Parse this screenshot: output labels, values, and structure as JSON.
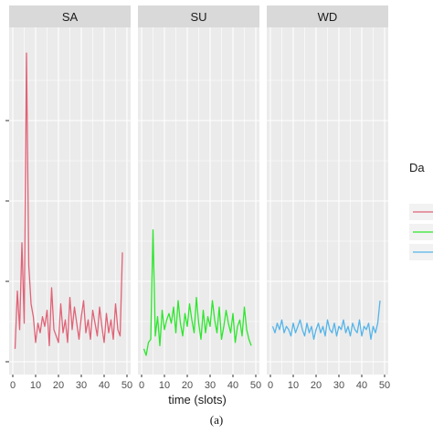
{
  "caption": "(a)",
  "chart_data": {
    "type": "line",
    "facet_by": "day",
    "xlabel": "time (slots)",
    "ylabel": "",
    "xlim": [
      0,
      50
    ],
    "x_ticks": [
      0,
      10,
      20,
      30,
      40,
      50
    ],
    "x_tick_labels": [
      "0",
      "10",
      "20",
      "30",
      "40",
      "50"
    ],
    "ylim": [
      0,
      1
    ],
    "legend": {
      "title": "Da",
      "position": "right",
      "clipped": true
    },
    "grid": true,
    "series": [
      {
        "facet": "SA",
        "color": "#E06377",
        "x": [
          1,
          2,
          3,
          4,
          5,
          6,
          7,
          8,
          9,
          10,
          11,
          12,
          13,
          14,
          15,
          16,
          17,
          18,
          19,
          20,
          21,
          22,
          23,
          24,
          25,
          26,
          27,
          28,
          29,
          30,
          31,
          32,
          33,
          34,
          35,
          36,
          37,
          38,
          39,
          40,
          41,
          42,
          43,
          44,
          45,
          46,
          47,
          48
        ],
        "y": [
          0.04,
          0.22,
          0.1,
          0.37,
          0.12,
          0.96,
          0.3,
          0.18,
          0.14,
          0.06,
          0.12,
          0.09,
          0.14,
          0.11,
          0.16,
          0.05,
          0.23,
          0.1,
          0.08,
          0.06,
          0.18,
          0.09,
          0.13,
          0.06,
          0.2,
          0.1,
          0.17,
          0.12,
          0.07,
          0.14,
          0.19,
          0.09,
          0.13,
          0.07,
          0.16,
          0.12,
          0.08,
          0.17,
          0.11,
          0.06,
          0.15,
          0.09,
          0.13,
          0.07,
          0.18,
          0.1,
          0.08,
          0.34
        ]
      },
      {
        "facet": "SU",
        "color": "#2EE62E",
        "x": [
          1,
          2,
          3,
          4,
          5,
          6,
          7,
          8,
          9,
          10,
          11,
          12,
          13,
          14,
          15,
          16,
          17,
          18,
          19,
          20,
          21,
          22,
          23,
          24,
          25,
          26,
          27,
          28,
          29,
          30,
          31,
          32,
          33,
          34,
          35,
          36,
          37,
          38,
          39,
          40,
          41,
          42,
          43,
          44,
          45,
          46,
          47,
          48
        ],
        "y": [
          0.04,
          0.02,
          0.06,
          0.07,
          0.41,
          0.08,
          0.14,
          0.05,
          0.16,
          0.1,
          0.13,
          0.15,
          0.12,
          0.17,
          0.09,
          0.19,
          0.12,
          0.08,
          0.15,
          0.11,
          0.18,
          0.13,
          0.09,
          0.2,
          0.12,
          0.07,
          0.16,
          0.09,
          0.14,
          0.11,
          0.19,
          0.13,
          0.09,
          0.17,
          0.07,
          0.11,
          0.16,
          0.12,
          0.09,
          0.15,
          0.06,
          0.11,
          0.13,
          0.08,
          0.17,
          0.1,
          0.07,
          0.05
        ]
      },
      {
        "facet": "WD",
        "color": "#56B4E9",
        "x": [
          1,
          2,
          3,
          4,
          5,
          6,
          7,
          8,
          9,
          10,
          11,
          12,
          13,
          14,
          15,
          16,
          17,
          18,
          19,
          20,
          21,
          22,
          23,
          24,
          25,
          26,
          27,
          28,
          29,
          30,
          31,
          32,
          33,
          34,
          35,
          36,
          37,
          38,
          39,
          40,
          41,
          42,
          43,
          44,
          45,
          46,
          47,
          48
        ],
        "y": [
          0.11,
          0.09,
          0.12,
          0.1,
          0.13,
          0.09,
          0.11,
          0.1,
          0.08,
          0.12,
          0.09,
          0.11,
          0.13,
          0.1,
          0.08,
          0.12,
          0.09,
          0.11,
          0.07,
          0.1,
          0.12,
          0.09,
          0.11,
          0.08,
          0.13,
          0.1,
          0.09,
          0.12,
          0.08,
          0.11,
          0.1,
          0.13,
          0.09,
          0.11,
          0.08,
          0.12,
          0.1,
          0.09,
          0.13,
          0.08,
          0.11,
          0.1,
          0.12,
          0.07,
          0.11,
          0.09,
          0.12,
          0.19
        ]
      }
    ],
    "facets": [
      "SA",
      "SU",
      "WD"
    ]
  }
}
